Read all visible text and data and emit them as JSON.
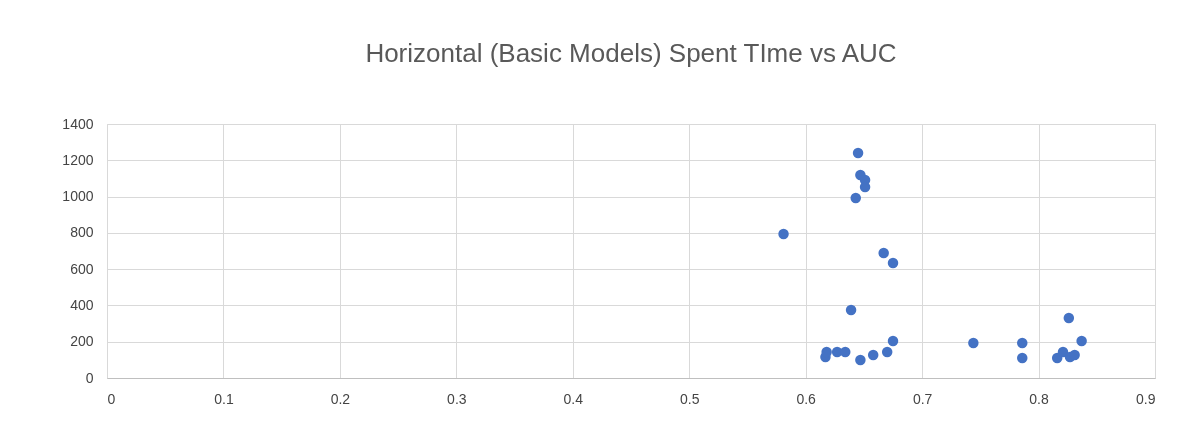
{
  "chart_data": {
    "type": "scatter",
    "title": "Horizontal (Basic Models) Spent TIme vs AUC",
    "x": [
      0.645,
      0.647,
      0.651,
      0.651,
      0.643,
      0.581,
      0.667,
      0.675,
      0.639,
      0.675,
      0.617,
      0.618,
      0.627,
      0.634,
      0.647,
      0.658,
      0.67,
      0.744,
      0.786,
      0.786,
      0.826,
      0.837,
      0.816,
      0.821,
      0.827,
      0.831
    ],
    "series": [
      {
        "color": "#4472c4",
        "values": [
          1240,
          1119,
          1091,
          1053,
          992,
          794,
          689,
          634,
          375,
          204,
          116,
          143,
          143,
          143,
          99,
          127,
          143,
          193,
          193,
          110,
          331,
          204,
          110,
          143,
          116,
          127
        ]
      }
    ],
    "xlim": [
      0,
      0.9
    ],
    "xticks": [
      0,
      0.1,
      0.2,
      0.3,
      0.4,
      0.5,
      0.6,
      0.7,
      0.8,
      0.9
    ],
    "ylim": [
      0,
      1400
    ],
    "yticks": [
      0,
      200,
      400,
      600,
      800,
      1000,
      1200,
      1400
    ],
    "grid": true,
    "marker": "circle"
  }
}
